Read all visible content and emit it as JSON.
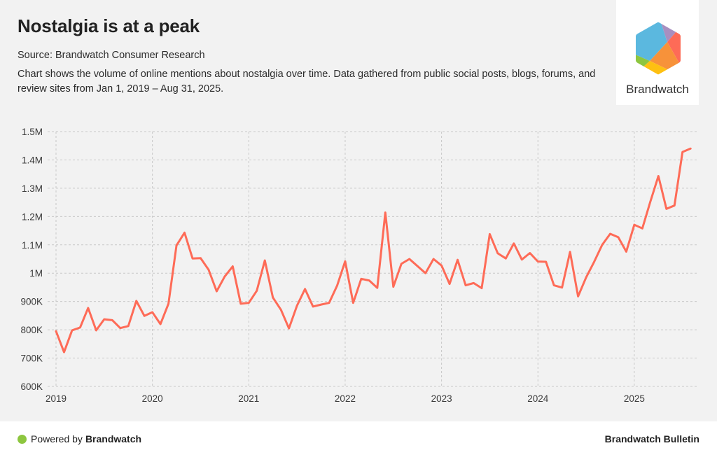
{
  "header": {
    "title": "Nostalgia is at a peak",
    "source": "Source: Brandwatch Consumer Research",
    "description": "Chart shows the volume of online mentions about nostalgia over time. Data gathered from public social posts, blogs, forums, and review sites from Jan 1, 2019 – Aug 31, 2025."
  },
  "logo": {
    "wordmark": "Brandwatch",
    "icon": "brandwatch-hexagon-logo",
    "colors": {
      "blue": "#5bb8df",
      "purple": "#a88fc0",
      "red": "#fe6b57",
      "orange": "#f7923a",
      "yellow": "#fec012",
      "green": "#8dc63f"
    }
  },
  "footer": {
    "powered_prefix": "Powered by",
    "powered_brand": "Brandwatch",
    "right_label": "Brandwatch Bulletin",
    "dot_color": "#8dc63f"
  },
  "chart_data": {
    "type": "line",
    "title": "Nostalgia is at a peak",
    "xlabel": "",
    "ylabel": "",
    "line_color": "#fe6b57",
    "grid": true,
    "legend": "none",
    "ylim": [
      600000,
      1500000
    ],
    "y_ticks": [
      {
        "value": 600000,
        "label": "600K"
      },
      {
        "value": 700000,
        "label": "700K"
      },
      {
        "value": 800000,
        "label": "800K"
      },
      {
        "value": 900000,
        "label": "900K"
      },
      {
        "value": 1000000,
        "label": "1M"
      },
      {
        "value": 1100000,
        "label": "1.1M"
      },
      {
        "value": 1200000,
        "label": "1.2M"
      },
      {
        "value": 1300000,
        "label": "1.3M"
      },
      {
        "value": 1400000,
        "label": "1.4M"
      },
      {
        "value": 1500000,
        "label": "1.5M"
      }
    ],
    "x_ticks": [
      "2019",
      "2020",
      "2021",
      "2022",
      "2023",
      "2024",
      "2025"
    ],
    "x_start": "2019-01",
    "x_end": "2025-08",
    "series": [
      {
        "name": "Online mentions of nostalgia",
        "interval": "monthly",
        "start": "2019-01",
        "values": [
          795000,
          721000,
          798000,
          808000,
          877000,
          798000,
          837000,
          834000,
          806000,
          813000,
          902000,
          849000,
          862000,
          820000,
          892000,
          1098000,
          1143000,
          1052000,
          1053000,
          1012000,
          936000,
          988000,
          1024000,
          892000,
          895000,
          938000,
          1045000,
          914000,
          871000,
          805000,
          885000,
          944000,
          882000,
          889000,
          895000,
          956000,
          1042000,
          895000,
          980000,
          974000,
          948000,
          1214000,
          952000,
          1033000,
          1050000,
          1025000,
          1000000,
          1050000,
          1027000,
          962000,
          1047000,
          957000,
          965000,
          947000,
          1138000,
          1070000,
          1052000,
          1105000,
          1048000,
          1071000,
          1041000,
          1040000,
          957000,
          949000,
          1075000,
          918000,
          985000,
          1040000,
          1100000,
          1139000,
          1127000,
          1076000,
          1171000,
          1158000,
          1253000,
          1343000,
          1227000,
          1239000,
          1428000,
          1440000
        ]
      }
    ]
  }
}
